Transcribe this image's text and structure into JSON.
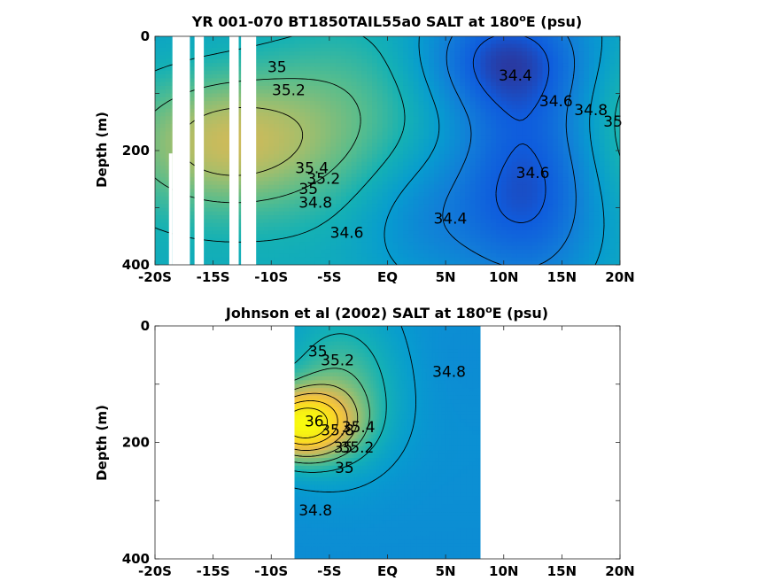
{
  "chart_data": [
    {
      "type": "heatmap",
      "title_text": "YR 001-070 BT1850TAIL55a0 SALT at 180",
      "title_sup": "o",
      "title_suffix": "E (psu)",
      "ylabel": "Depth (m)",
      "xlabel": "",
      "xlim": [
        -20,
        20
      ],
      "ylim": [
        0,
        400
      ],
      "y_reversed": true,
      "xticks": [
        -20,
        -15,
        -10,
        -5,
        0,
        5,
        10,
        15,
        20
      ],
      "xtick_labels": [
        "-20S",
        "-15S",
        "-10S",
        "-5S",
        "EQ",
        "5N",
        "10N",
        "15N",
        "20N"
      ],
      "yticks": [
        0,
        200,
        400
      ],
      "ytick_labels": [
        "0",
        "200",
        "400"
      ],
      "color_range": [
        34.2,
        36.2
      ],
      "data_extent": [
        -20,
        20
      ],
      "missing_columns": [
        [
          -18.5,
          -17.0
        ],
        [
          -16.6,
          -15.8
        ],
        [
          -13.6,
          -12.8
        ],
        [
          -12.6,
          -11.3
        ]
      ],
      "missing_notches": [
        [
          -18.8,
          -18.5,
          205,
          400
        ]
      ],
      "contour_levels": [
        34.4,
        34.6,
        34.8,
        35.0,
        35.2,
        35.4
      ],
      "contour_labels": [
        {
          "text": "35",
          "x": -9.5,
          "y": 55
        },
        {
          "text": "35.2",
          "x": -8.5,
          "y": 95
        },
        {
          "text": "34.4",
          "x": 11,
          "y": 70
        },
        {
          "text": "34.6",
          "x": 14.5,
          "y": 115
        },
        {
          "text": "34.8",
          "x": 17.5,
          "y": 130
        },
        {
          "text": "35",
          "x": 19.4,
          "y": 150
        },
        {
          "text": "34.6",
          "x": 12.5,
          "y": 240
        },
        {
          "text": "35.4",
          "x": -6.5,
          "y": 232
        },
        {
          "text": "35.2",
          "x": -5.5,
          "y": 250
        },
        {
          "text": "35",
          "x": -6.8,
          "y": 268
        },
        {
          "text": "34.8",
          "x": -6.2,
          "y": 292
        },
        {
          "text": "34.4",
          "x": 5.4,
          "y": 320
        },
        {
          "text": "34.6",
          "x": -3.5,
          "y": 345
        }
      ]
    },
    {
      "type": "heatmap",
      "title_text": "Johnson et al (2002) SALT at 180",
      "title_sup": "o",
      "title_suffix": "E (psu)",
      "ylabel": "Depth (m)",
      "xlabel": "",
      "xlim": [
        -20,
        20
      ],
      "ylim": [
        0,
        400
      ],
      "y_reversed": true,
      "xticks": [
        -20,
        -15,
        -10,
        -5,
        0,
        5,
        10,
        15,
        20
      ],
      "xtick_labels": [
        "-20S",
        "-15S",
        "-10S",
        "-5S",
        "EQ",
        "5N",
        "10N",
        "15N",
        "20N"
      ],
      "yticks": [
        0,
        200,
        400
      ],
      "ytick_labels": [
        "0",
        "200",
        "400"
      ],
      "color_range": [
        34.2,
        36.2
      ],
      "data_extent": [
        -8,
        8
      ],
      "missing_columns": [],
      "missing_notches": [],
      "contour_levels": [
        34.6,
        34.8,
        35.0,
        35.2,
        35.4,
        35.6,
        35.8,
        36.0
      ],
      "contour_labels": [
        {
          "text": "35",
          "x": -6,
          "y": 45
        },
        {
          "text": "35.2",
          "x": -4.3,
          "y": 60
        },
        {
          "text": "34.8",
          "x": 5.3,
          "y": 80
        },
        {
          "text": "36",
          "x": -6.3,
          "y": 165
        },
        {
          "text": "35.8",
          "x": -4.3,
          "y": 180
        },
        {
          "text": "35.4",
          "x": -2.5,
          "y": 175
        },
        {
          "text": "35",
          "x": -3.8,
          "y": 210
        },
        {
          "text": "35.2",
          "x": -2.6,
          "y": 210
        },
        {
          "text": "35",
          "x": -3.7,
          "y": 245
        },
        {
          "text": "34.8",
          "x": -6.2,
          "y": 318
        }
      ]
    }
  ]
}
